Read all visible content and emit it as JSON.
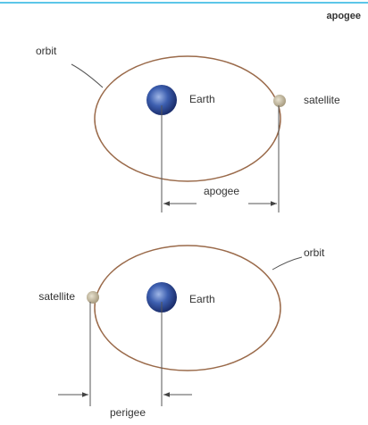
{
  "header": {
    "title": "apogee"
  },
  "top_diagram": {
    "orbit_label": "orbit",
    "earth_label": "Earth",
    "satellite_label": "satellite",
    "distance_label": "apogee"
  },
  "bottom_diagram": {
    "orbit_label": "orbit",
    "earth_label": "Earth",
    "satellite_label": "satellite",
    "distance_label": "perigee"
  }
}
